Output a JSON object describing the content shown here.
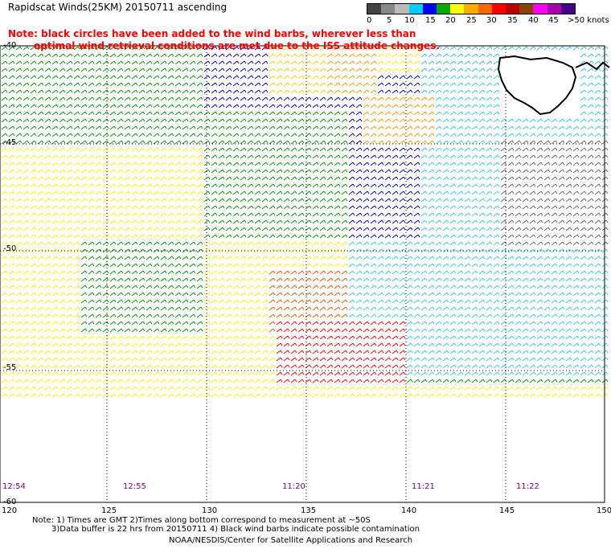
{
  "header": {
    "title": "Rapidscat Winds(25KM) 20150711 ascending",
    "note_line1": "Note: black circles have been added to the wind barbs, wherever less than",
    "note_line2": "optimal wind retrieval conditions are met due to the ISS attitude changes."
  },
  "legend": {
    "labels": [
      "0",
      "5",
      "10",
      "15",
      "20",
      "25",
      "30",
      "35",
      "40",
      "45",
      ">50 knots"
    ],
    "colors": [
      "#404040",
      "#ffffff",
      "#0000ff",
      "#00ccff",
      "#00aa00",
      "#ffff00",
      "#ffaa00",
      "#ff0000",
      "#884400",
      "#ff00ff",
      "#440088"
    ]
  },
  "axes": {
    "lon_labels": [
      "120",
      "125",
      "130",
      "135",
      "140",
      "145",
      "150"
    ],
    "lat_labels": [
      "-40",
      "-45",
      "-50",
      "-55",
      "-60"
    ]
  },
  "times": [
    "12:54",
    "12:55",
    "11:20",
    "11:21",
    "11:22"
  ],
  "footer": {
    "line1": "Note: 1) Times are GMT 2)Times along bottom correspond to measurement at ~50S",
    "line2": "3)Data buffer is 22 hrs from 20150711 4) Black wind barbs indicate possible contamination",
    "line3": "NOAA/NESDIS/Center for Satellite Applications and Research"
  },
  "map_data": {
    "lon_range": [
      120,
      150
    ],
    "lat_range": [
      -40,
      -60
    ],
    "landmass": "Tasmania"
  }
}
